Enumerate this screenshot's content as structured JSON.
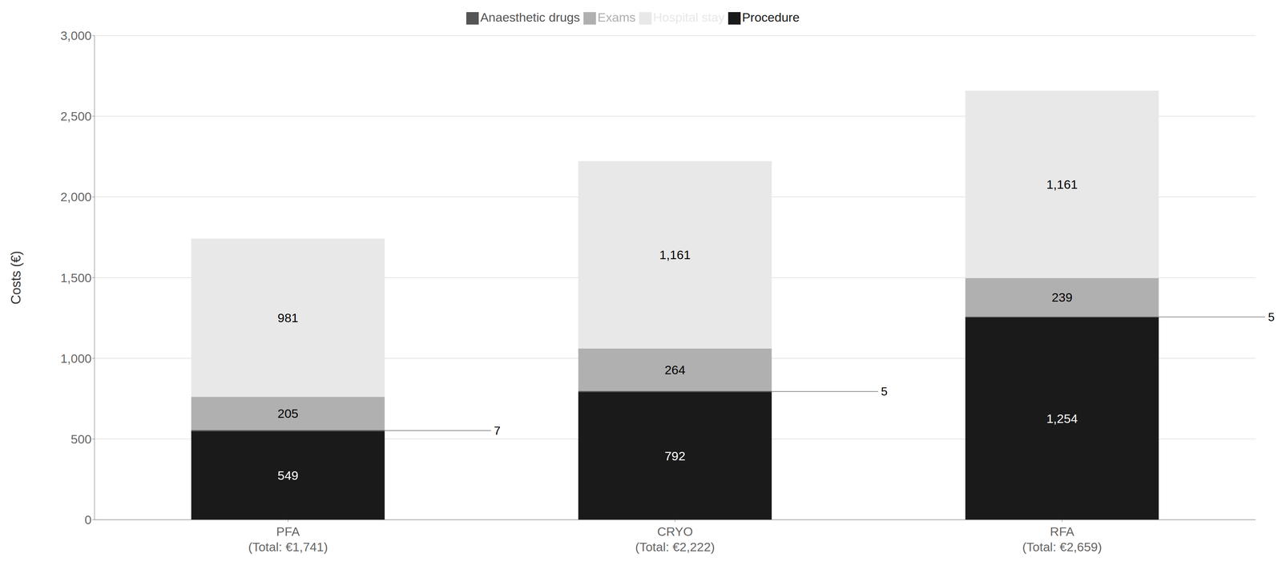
{
  "chart_data": {
    "type": "bar",
    "categories": [
      "PFA\n(Total: €1,741)",
      "CRYO\n(Total: €2,222)",
      "RFA\n(Total: €2,659)"
    ],
    "ylabel": "Costs (€)",
    "ylim": [
      0,
      3000
    ],
    "yticks": [
      0,
      500,
      {
        "value": 1000,
        "label": "1,000"
      },
      {
        "value": 1500,
        "label": "1,500"
      },
      {
        "value": 2000,
        "label": "2,000"
      },
      {
        "value": 2500,
        "label": "2,500"
      },
      {
        "value": 3000,
        "label": "3,000"
      }
    ],
    "stacked": true,
    "data_labels": true,
    "grid": true,
    "legend": "top",
    "series": [
      {
        "name": "Procedure",
        "color": "#1a1a1a",
        "values": [
          549,
          792,
          1254
        ],
        "value_labels": [
          "549",
          "792",
          "1,254"
        ]
      },
      {
        "name": "Anaesthetic drugs",
        "color": "#555555",
        "values": [
          7,
          5,
          5
        ]
      },
      {
        "name": "Exams",
        "color": "#b0b0b0",
        "values": [
          205,
          264,
          239
        ]
      },
      {
        "name": "Hospital stay",
        "color": "#e8e8e8",
        "values": [
          981,
          1161,
          1161
        ],
        "value_labels": [
          "981",
          "1,161",
          "1,161"
        ]
      }
    ]
  }
}
